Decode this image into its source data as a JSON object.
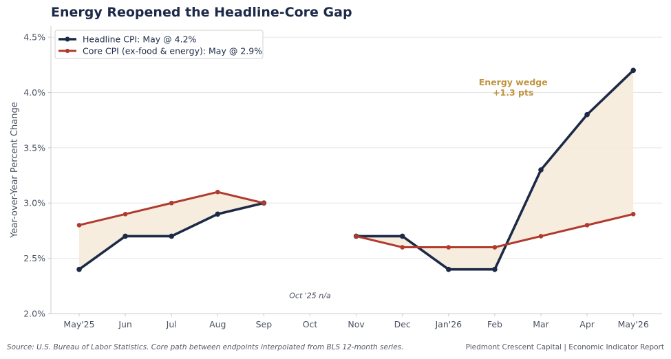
{
  "chart_data": {
    "type": "line",
    "title": "Energy Reopened the Headline-Core Gap",
    "xlabel": "",
    "ylabel": "Year-over-Year Percent Change",
    "categories": [
      "May'25",
      "Jun",
      "Jul",
      "Aug",
      "Sep",
      "Oct",
      "Nov",
      "Dec",
      "Jan'26",
      "Feb",
      "Mar",
      "Apr",
      "May'26"
    ],
    "y_ticks": [
      "2.0%",
      "2.5%",
      "3.0%",
      "3.5%",
      "4.0%",
      "4.5%"
    ],
    "ylim": [
      2.0,
      4.6
    ],
    "grid": "horizontal",
    "legend_position": "top-left",
    "series": [
      {
        "name": "Headline CPI: May @ 4.2%",
        "color": "#1c2a48",
        "values": [
          2.4,
          2.7,
          2.7,
          2.9,
          3.0,
          null,
          2.7,
          2.7,
          2.4,
          2.4,
          3.3,
          3.8,
          4.2
        ]
      },
      {
        "name": "Core CPI (ex-food & energy): May @ 2.9%",
        "color": "#b03a2e",
        "values": [
          2.8,
          2.9,
          3.0,
          3.1,
          3.0,
          null,
          2.7,
          2.6,
          2.6,
          2.6,
          2.7,
          2.8,
          2.9
        ]
      }
    ],
    "fill_between_color": "#f5ecdc",
    "annotations": [
      {
        "text_line1": "Energy wedge",
        "text_line2": "+1.3 pts",
        "x_index": 9.4,
        "y": 4.04,
        "color": "#c09440"
      },
      {
        "text": "Oct '25 n/a",
        "x_index": 5.0,
        "y": 2.14
      }
    ]
  },
  "footer": {
    "source": "Source: U.S. Bureau of Labor Statistics. Core path between endpoints interpolated from BLS 12-month series.",
    "credit": "Piedmont Crescent Capital | Economic Indicator Report"
  }
}
